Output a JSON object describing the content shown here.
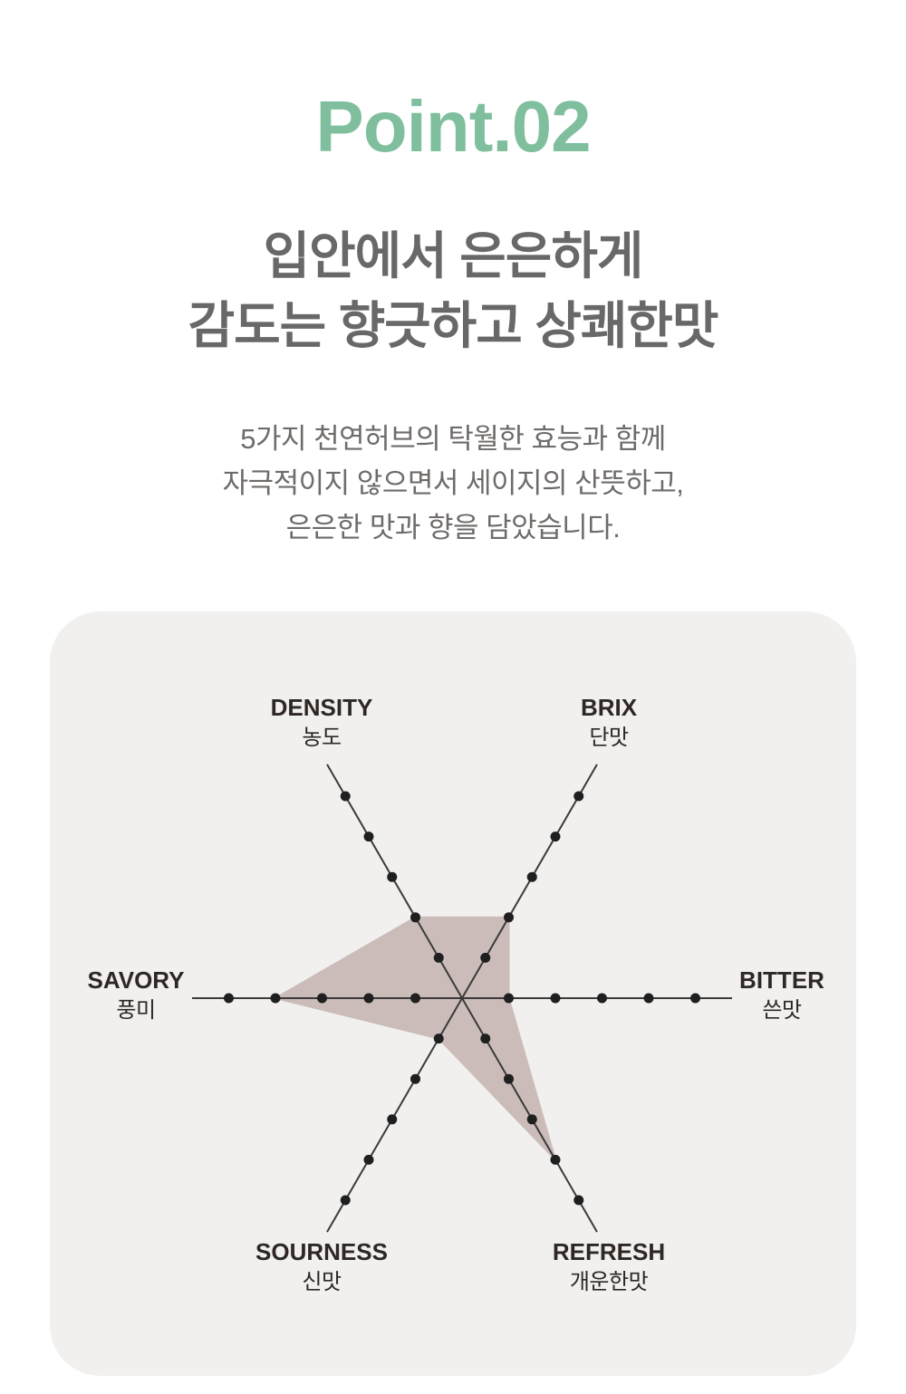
{
  "header": {
    "badge": "Point.02",
    "title_lines": [
      "입안에서 은은하게",
      "감도는 향긋하고 상쾌한맛"
    ],
    "description_lines": [
      "5가지 천연허브의 탁월한 효능과 함께",
      "자극적이지 않으면서 세이지의 산뜻하고,",
      "은은한 맛과 향을 담았습니다."
    ]
  },
  "colors": {
    "badge_green": "#7fbf9e",
    "heading_gray": "#686868",
    "body_gray": "#6e6b69",
    "label_dark": "#2e2723",
    "card_background": "#f1f0ef",
    "radar_fill": "#cbbcba",
    "axis_line": "#3a3a3a",
    "tick_dot": "#1f1f1f"
  },
  "chart_data": {
    "type": "radar",
    "max": 5,
    "ticks_per_axis": 5,
    "legend": "none",
    "axes": [
      {
        "en": "DENSITY",
        "ko": "농도",
        "value": 2
      },
      {
        "en": "BRIX",
        "ko": "단맛",
        "value": 2
      },
      {
        "en": "BITTER",
        "ko": "쓴맛",
        "value": 1
      },
      {
        "en": "REFRESH",
        "ko": "개운한맛",
        "value": 4
      },
      {
        "en": "SOURNESS",
        "ko": "신맛",
        "value": 1
      },
      {
        "en": "SAVORY",
        "ko": "풍미",
        "value": 4
      }
    ]
  }
}
